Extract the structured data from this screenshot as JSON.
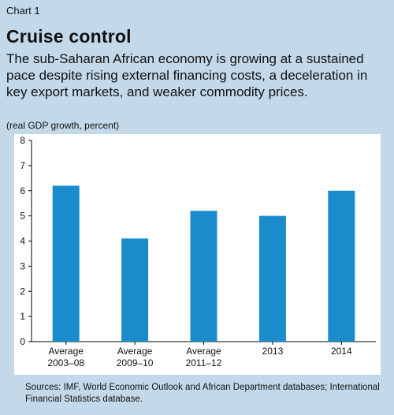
{
  "header": {
    "label": "Chart 1",
    "title": "Cruise control",
    "subtitle": "The sub-Saharan African economy is growing at a sustained pace despite rising external financing costs, a deceleration in key export markets, and weaker commodity prices.",
    "unit": "(real GDP growth, percent)"
  },
  "footer": {
    "source": "Sources: IMF, World Economic Outlook and African Department databases; International Financial Statistics database."
  },
  "colors": {
    "background": "#c3d9ea",
    "plot_area": "#ffffff",
    "bar": "#1a8ccc"
  },
  "chart_data": {
    "type": "bar",
    "title": "Cruise control",
    "ylabel": "(real GDP growth, percent)",
    "xlabel": "",
    "categories": [
      [
        "Average",
        "2003–08"
      ],
      [
        "Average",
        "2009–10"
      ],
      [
        "Average",
        "2011–12"
      ],
      [
        "2013"
      ],
      [
        "2014"
      ]
    ],
    "values": [
      6.2,
      4.1,
      5.2,
      5.0,
      6.0
    ],
    "ylim": [
      0,
      8
    ],
    "yticks": [
      0,
      1,
      2,
      3,
      4,
      5,
      6,
      7,
      8
    ],
    "grid": false,
    "legend": "none"
  }
}
